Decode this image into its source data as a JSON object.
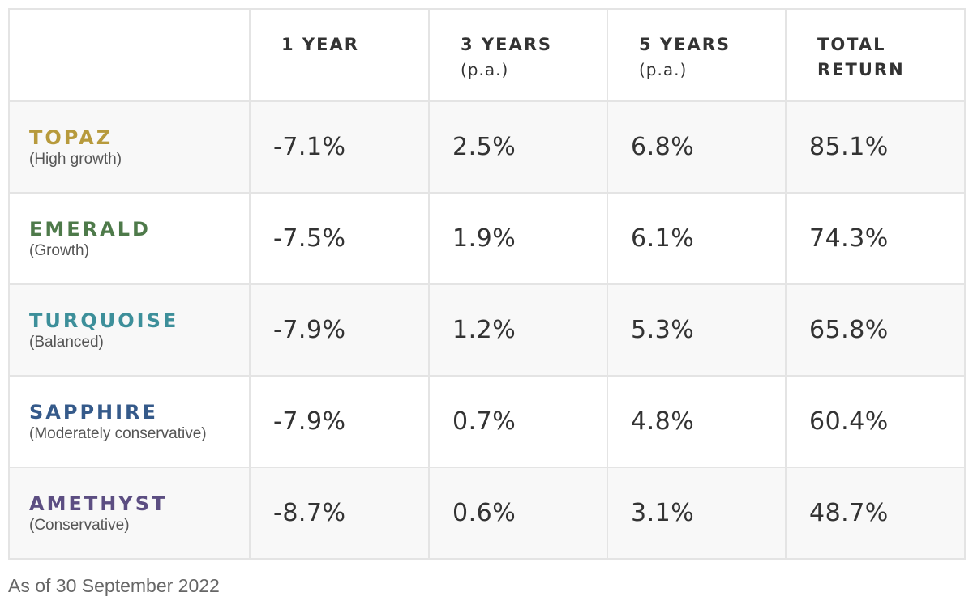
{
  "columns": [
    {
      "label": "",
      "sub": ""
    },
    {
      "label": "1 YEAR",
      "sub": ""
    },
    {
      "label": "3 YEARS",
      "sub": "(p.a.)"
    },
    {
      "label": "5 YEARS",
      "sub": "(p.a.)"
    },
    {
      "label": "TOTAL",
      "sub": "RETURN"
    }
  ],
  "funds": [
    {
      "name": "TOPAZ",
      "desc": "(High growth)",
      "color": "#b79a3c",
      "values": [
        "-7.1%",
        "2.5%",
        "6.8%",
        "85.1%"
      ]
    },
    {
      "name": "EMERALD",
      "desc": "(Growth)",
      "color": "#4e7a4a",
      "values": [
        "-7.5%",
        "1.9%",
        "6.1%",
        "74.3%"
      ]
    },
    {
      "name": "TURQUOISE",
      "desc": "(Balanced)",
      "color": "#3d8f9a",
      "values": [
        "-7.9%",
        "1.2%",
        "5.3%",
        "65.8%"
      ]
    },
    {
      "name": "SAPPHIRE",
      "desc": "(Moderately conservative)",
      "color": "#355a8a",
      "values": [
        "-7.9%",
        "0.7%",
        "4.8%",
        "60.4%"
      ]
    },
    {
      "name": "AMETHYST",
      "desc": "(Conservative)",
      "color": "#5c4e82",
      "values": [
        "-8.7%",
        "0.6%",
        "3.1%",
        "48.7%"
      ]
    }
  ],
  "footnote": "As of 30 September 2022"
}
